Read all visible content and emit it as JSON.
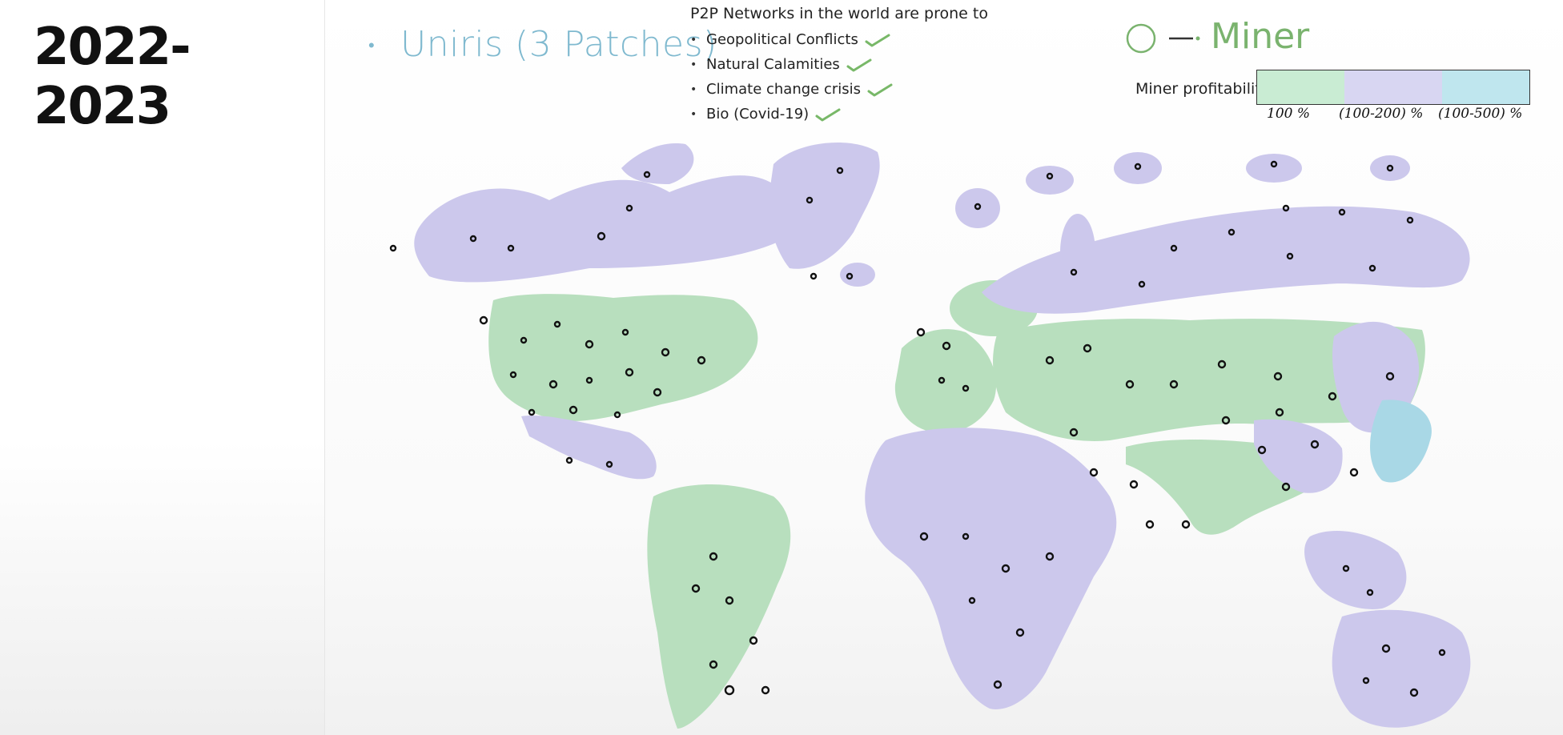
{
  "header": {
    "year_title": "2022-2023",
    "patch_title": "Uniris (3 Patches)"
  },
  "risks": {
    "heading": "P2P Networks in the world are prone to",
    "items": [
      {
        "label": "Geopolitical Conflicts",
        "checked": true
      },
      {
        "label": "Natural Calamities",
        "checked": true
      },
      {
        "label": "Climate change crisis",
        "checked": true
      },
      {
        "label": "Bio (Covid-19)",
        "checked": true
      }
    ]
  },
  "legend": {
    "miner_label": "Miner",
    "profitability_label": "Miner profitability",
    "segments": [
      {
        "label": "100 %",
        "color": "#c9ecd3"
      },
      {
        "label": "(100-200) %",
        "color": "#d8d6f2"
      },
      {
        "label": "(100-500) %",
        "color": "#bfe6ee"
      }
    ]
  },
  "map": {
    "land_colors": {
      "high": "#b8dfbe",
      "medium": "#ccc8ec",
      "low": "#a9d8e6"
    },
    "icon": "miner-circle-icon"
  },
  "colors": {
    "accent_blue": "#7fb9cf",
    "accent_green": "#7ab36e",
    "check_green": "#78b868"
  }
}
